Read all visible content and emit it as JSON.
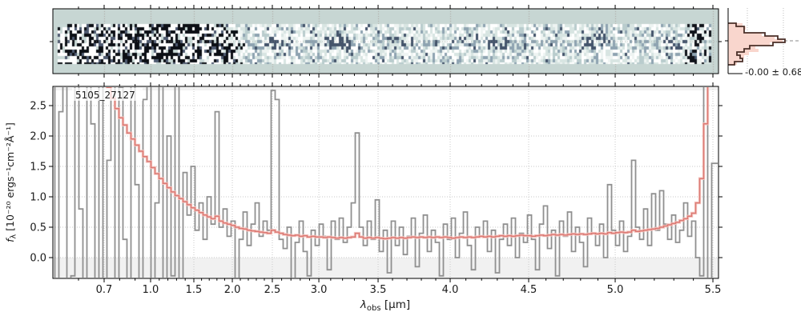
{
  "annotation": {
    "label": "5105_27127"
  },
  "axes_text": {
    "xlabel_symbol": "λ",
    "xlabel_sub": "obs",
    "xlabel_rest": " [μm]",
    "ylabel_symbol": "f",
    "ylabel_sub": "λ",
    "ylabel_rest": " [10⁻²⁰ ergs⁻¹cm⁻²Å⁻¹]"
  },
  "panel2d": {
    "description": "2D spectrum cutout with noise, dark trace in center row",
    "background": "#c7d6d3",
    "noise_seed": 77,
    "gridline_color": "#aaa39b",
    "palette_dark_zone": [
      "#0c0f15",
      "#4e5a70",
      "#c9d9d7",
      "#ffffff"
    ],
    "palette_light_zone": [
      "#43536a",
      "#8ea3b1",
      "#b9cccd",
      "#d8e5e2",
      "#eef4f2",
      "#ffffff"
    ]
  },
  "chart_data": [
    {
      "type": "line",
      "name": "1D extracted spectrum",
      "xlabel": "λ_obs [μm]",
      "ylabel": "f_λ [10^-20 ergs^-1 cm^-2 Å^-1]",
      "xlim": [
        0.5,
        5.53
      ],
      "ylim": [
        -0.34,
        2.82
      ],
      "x_ticks_major": [
        0.7,
        1.0,
        1.5,
        2.0,
        2.5,
        3.0,
        3.5,
        4.0,
        4.5,
        5.0,
        5.5
      ],
      "x_tick_labels": [
        "0.7",
        "1.0",
        "1.5",
        "2.0",
        "2.5",
        "3.0",
        "3.5",
        "4.0",
        "4.5",
        "5.0",
        "5.5"
      ],
      "y_ticks": [
        0.0,
        0.5,
        1.0,
        1.5,
        2.0,
        2.5
      ],
      "y_tick_labels": [
        "0.0",
        "0.5",
        "1.0",
        "1.5",
        "2.0",
        "2.5"
      ],
      "minor_tick_step": 0.1,
      "grid": "dotted",
      "shaded_below": 0.0,
      "shaded_above": 2.75,
      "wavelength_axis_anchors_frac": [
        [
          0.5,
          0
        ],
        [
          0.7,
          0.077
        ],
        [
          1.0,
          0.1468
        ],
        [
          1.5,
          0.2118
        ],
        [
          2.0,
          0.2696
        ],
        [
          2.5,
          0.3297
        ],
        [
          3.0,
          0.3996
        ],
        [
          3.5,
          0.4886
        ],
        [
          4.0,
          0.5969
        ],
        [
          4.5,
          0.7148
        ],
        [
          5.0,
          0.8448
        ],
        [
          5.5,
          0.9916
        ],
        [
          5.53,
          1.0
        ]
      ],
      "x_sampling": {
        "mode": "uniform-detector-pixels",
        "n": 166,
        "lambda_start": 0.5,
        "lambda_end": 5.53
      },
      "series": [
        {
          "name": "flux",
          "style": "step-mid",
          "color": "#909090",
          "values": [
            3.2,
            -0.6,
            2.4,
            3.2,
            -0.6,
            -0.3,
            3.2,
            0.8,
            -0.6,
            3.2,
            2.2,
            -0.6,
            3.2,
            -0.4,
            1.6,
            3.2,
            -0.6,
            2.8,
            0.3,
            -0.6,
            3.2,
            1.2,
            -0.6,
            2.6,
            3.2,
            -0.5,
            0.9,
            3.2,
            -0.6,
            2.0,
            -0.3,
            3.2,
            -0.6,
            1.4,
            0.7,
            1.5,
            0.45,
            0.9,
            0.3,
            1.0,
            0.55,
            2.4,
            0.5,
            0.8,
            0.35,
            0.6,
            -0.6,
            0.3,
            0.75,
            0.2,
            0.55,
            0.9,
            0.35,
            0.6,
            0.45,
            2.75,
            2.6,
            0.3,
            0.15,
            0.5,
            -0.45,
            0.25,
            0.6,
            0.1,
            -0.3,
            0.45,
            0.2,
            0.55,
            0.35,
            -0.2,
            0.6,
            0.3,
            0.65,
            0.25,
            0.5,
            0.9,
            2.05,
            0.5,
            0.2,
            0.6,
            0.3,
            0.95,
            0.1,
            0.45,
            -0.25,
            0.6,
            0.2,
            0.5,
            0.05,
            0.35,
            0.65,
            -0.15,
            0.4,
            0.7,
            0.1,
            0.45,
            0.25,
            -0.3,
            0.55,
            0.3,
            0.65,
            0.0,
            0.4,
            0.75,
            0.2,
            -0.2,
            0.5,
            0.35,
            0.6,
            0.1,
            0.45,
            -0.25,
            0.3,
            0.55,
            0.2,
            0.65,
            0.0,
            0.4,
            0.25,
            0.7,
            0.3,
            -0.2,
            0.55,
            0.85,
            0.15,
            0.45,
            -0.3,
            0.6,
            0.35,
            0.75,
            0.1,
            0.5,
            0.25,
            -0.15,
            0.65,
            0.4,
            0.2,
            0.55,
            0.0,
            1.2,
            0.45,
            0.2,
            0.6,
            0.1,
            0.35,
            1.6,
            0.5,
            0.3,
            0.8,
            0.2,
            1.05,
            0.45,
            1.1,
            0.55,
            0.3,
            0.7,
            0.25,
            0.45,
            0.9,
            0.35,
            0.6,
            0.0,
            -0.3,
            3.2,
            -0.6,
            1.55
          ]
        },
        {
          "name": "uncertainty",
          "style": "step-mid",
          "color": "#dc7a74",
          "halo_color": "#f4c7c2",
          "values": [
            4,
            4,
            4,
            4,
            4,
            4,
            4,
            4,
            4,
            4,
            4,
            4,
            4,
            3.0,
            2.8,
            2.62,
            2.45,
            2.3,
            2.18,
            2.05,
            1.95,
            1.85,
            1.75,
            1.66,
            1.58,
            1.48,
            1.38,
            1.3,
            1.22,
            1.15,
            1.08,
            1.02,
            0.97,
            0.92,
            0.87,
            0.82,
            0.78,
            0.74,
            0.7,
            0.67,
            0.64,
            0.68,
            0.6,
            0.57,
            0.55,
            0.53,
            0.5,
            0.48,
            0.47,
            0.45,
            0.44,
            0.43,
            0.42,
            0.41,
            0.4,
            0.45,
            0.42,
            0.4,
            0.38,
            0.37,
            0.36,
            0.37,
            0.35,
            0.36,
            0.34,
            0.35,
            0.34,
            0.34,
            0.33,
            0.34,
            0.33,
            0.32,
            0.33,
            0.32,
            0.33,
            0.34,
            0.4,
            0.34,
            0.32,
            0.33,
            0.32,
            0.33,
            0.32,
            0.31,
            0.32,
            0.33,
            0.32,
            0.33,
            0.32,
            0.33,
            0.34,
            0.33,
            0.34,
            0.33,
            0.34,
            0.33,
            0.34,
            0.33,
            0.34,
            0.33,
            0.32,
            0.33,
            0.34,
            0.33,
            0.34,
            0.33,
            0.34,
            0.35,
            0.34,
            0.35,
            0.34,
            0.35,
            0.36,
            0.35,
            0.36,
            0.35,
            0.36,
            0.37,
            0.36,
            0.36,
            0.35,
            0.36,
            0.37,
            0.36,
            0.37,
            0.38,
            0.37,
            0.38,
            0.37,
            0.38,
            0.39,
            0.38,
            0.39,
            0.38,
            0.39,
            0.4,
            0.39,
            0.4,
            0.39,
            0.41,
            0.4,
            0.41,
            0.42,
            0.41,
            0.42,
            0.45,
            0.43,
            0.44,
            0.45,
            0.46,
            0.47,
            0.48,
            0.5,
            0.52,
            0.54,
            0.56,
            0.58,
            0.61,
            0.64,
            0.68,
            0.73,
            0.9,
            1.3,
            2.2,
            3.2,
            4.0
          ]
        }
      ]
    },
    {
      "type": "histogram-horizontal",
      "name": "2D pixel value distribution",
      "stats_label": "-0.00 ± 0.68",
      "fill_color": "#f9d6cd",
      "outline_color": "#4a2f28",
      "row_values_pink": [
        18,
        22,
        20,
        42,
        58,
        68,
        52,
        34,
        38,
        26,
        20,
        16,
        11
      ],
      "row_values_brown": [
        10,
        20,
        20,
        46,
        62,
        71,
        56,
        27,
        20,
        11,
        15,
        18,
        8
      ]
    }
  ]
}
